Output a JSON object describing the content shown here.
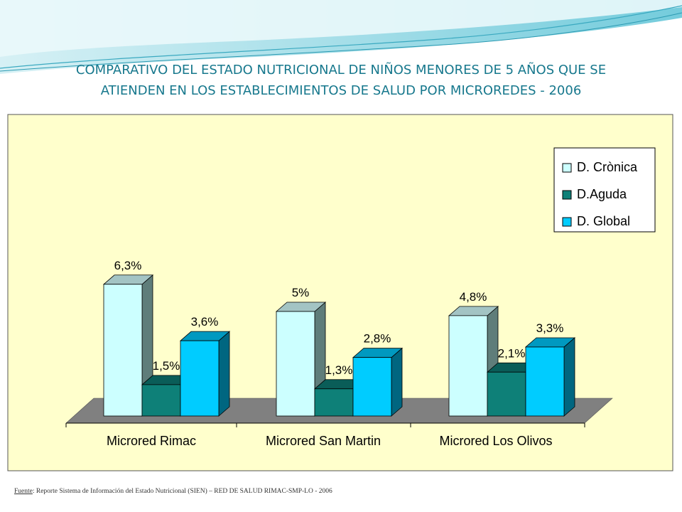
{
  "title_line1": "COMPARATIVO DEL ESTADO NUTRICIONAL DE NIÑOS MENORES DE 5 AÑOS QUE SE",
  "title_line2": "ATIENDEN EN LOS ESTABLECIMIENTOS DE SALUD POR MICROREDES - 2006",
  "source_label": "Fuente",
  "source_text": ": Reporte Sistema de Información del Estado Nutricional (SIEN) – RED DE SALUD RIMAC-SMP-LO - 2006",
  "chart_data": {
    "type": "bar",
    "title": "",
    "xlabel": "",
    "ylabel": "",
    "ylim": [
      0,
      7
    ],
    "grid": false,
    "legend_position": "top-right",
    "categories": [
      "Microred Rimac",
      "Microred San Martin",
      "Microred Los Olivos"
    ],
    "series": [
      {
        "name": "D. Crònica",
        "values": [
          6.3,
          5.0,
          4.8
        ],
        "labels": [
          "6,3%",
          "5%",
          "4,8%"
        ],
        "color": "#ccffff",
        "side": "#5f7d7a",
        "top": "#a3c4c4"
      },
      {
        "name": "D.Aguda",
        "values": [
          1.5,
          1.3,
          2.1
        ],
        "labels": [
          "1,5%",
          "1,3%",
          "2,1%"
        ],
        "color": "#0e8078",
        "side": "#074b47",
        "top": "#0a5d58"
      },
      {
        "name": "D. Global",
        "values": [
          3.6,
          2.8,
          3.3
        ],
        "labels": [
          "3,6%",
          "2,8%",
          "3,3%"
        ],
        "color": "#00ccff",
        "side": "#006680",
        "top": "#0099c0"
      }
    ],
    "colors": {
      "plot_background": "#ffffcc",
      "floor": "#808080"
    }
  }
}
